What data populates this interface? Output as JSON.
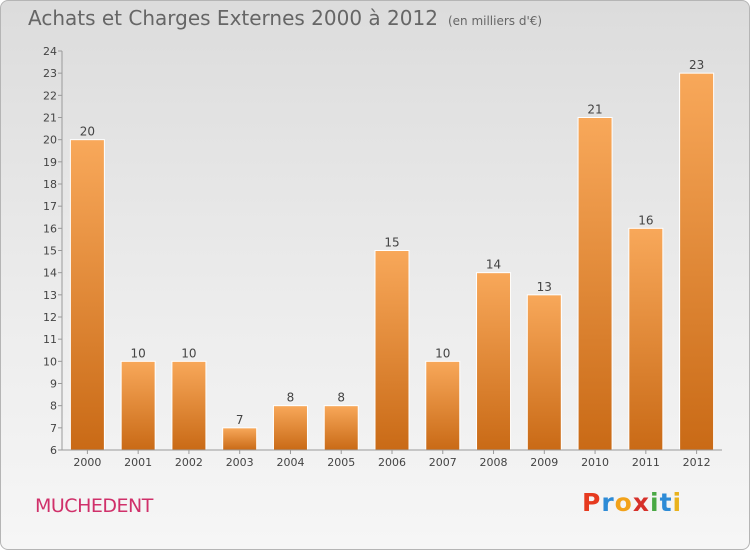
{
  "title": "Achats et Charges Externes 2000 à 2012",
  "subtitle": "(en milliers d'€)",
  "town": "MUCHEDENT",
  "logo": {
    "text": "Proxiti",
    "letters": [
      "P",
      "r",
      "o",
      "x",
      "i",
      "t",
      "i"
    ],
    "colors": [
      "#e63a1f",
      "#2d8bd6",
      "#f2a21a",
      "#d6302a",
      "#49a844",
      "#2d8bd6",
      "#e9b21d"
    ]
  },
  "colors": {
    "bar_top": "#f8a85a",
    "bar_bottom": "#c96a16",
    "title": "#666666",
    "town": "#d0306a"
  },
  "chart_data": {
    "type": "bar",
    "categories": [
      "2000",
      "2001",
      "2002",
      "2003",
      "2004",
      "2005",
      "2006",
      "2007",
      "2008",
      "2009",
      "2010",
      "2011",
      "2012"
    ],
    "values": [
      20,
      10,
      10,
      7,
      8,
      8,
      15,
      10,
      14,
      13,
      21,
      16,
      23
    ],
    "ylim": [
      6,
      24
    ],
    "yticks": [
      6,
      7,
      8,
      9,
      10,
      11,
      12,
      13,
      14,
      15,
      16,
      17,
      18,
      19,
      20,
      21,
      22,
      23,
      24
    ],
    "grid": false,
    "legend": "none",
    "data_labels": true
  }
}
